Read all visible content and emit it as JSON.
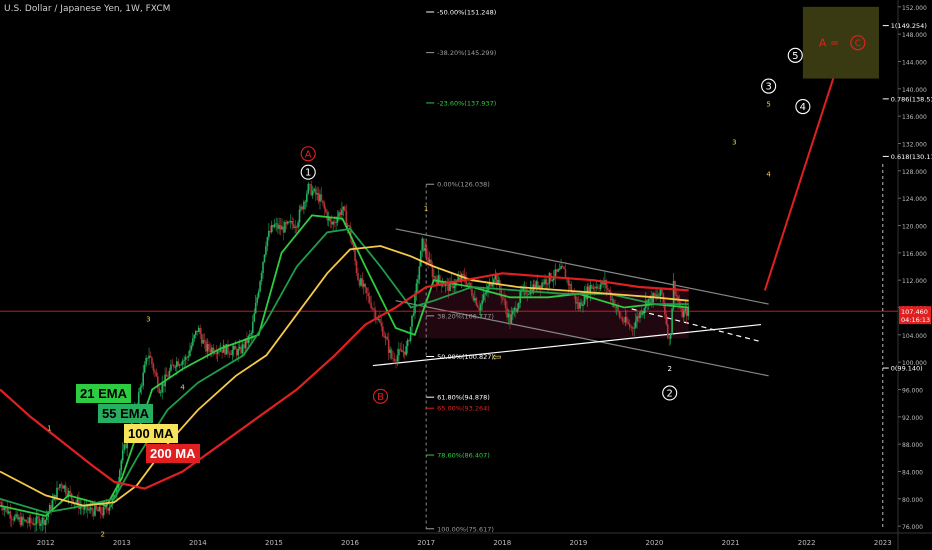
{
  "header": {
    "symbol_title": "U.S. Dollar / Japanese Yen, 1W, FXCM"
  },
  "ma_labels": [
    {
      "text": "21 EMA",
      "bg": "#2ecc40",
      "fg": "#000000"
    },
    {
      "text": "55 EMA",
      "bg": "#27ae60",
      "fg": "#000000"
    },
    {
      "text": "100 MA",
      "bg": "#f7e35c",
      "fg": "#000000"
    },
    {
      "text": "200 MA",
      "bg": "#e02020",
      "fg": "#ffffff"
    }
  ],
  "chart_data": {
    "type": "candlestick",
    "title": "U.S. Dollar / Japanese Yen, 1W, FXCM",
    "ylim": [
      75,
      153
    ],
    "y_ticks": [
      76.0,
      80.0,
      84.0,
      88.0,
      92.0,
      96.0,
      100.0,
      104.0,
      108.0,
      112.0,
      116.0,
      120.0,
      124.0,
      128.0,
      132.0,
      136.0,
      140.0,
      144.0,
      148.0,
      152.0
    ],
    "x_ticks": [
      "2012",
      "2013",
      "2014",
      "2015",
      "2016",
      "2017",
      "2018",
      "2019",
      "2020",
      "2021",
      "2022",
      "2023"
    ],
    "xlim": [
      2011.4,
      2023.2
    ],
    "price_path": [
      [
        2011.4,
        79.5
      ],
      [
        2011.6,
        77.0
      ],
      [
        2011.8,
        76.5
      ],
      [
        2012.0,
        77.0
      ],
      [
        2012.2,
        82.5
      ],
      [
        2012.35,
        80.0
      ],
      [
        2012.5,
        78.5
      ],
      [
        2012.75,
        78.0
      ],
      [
        2012.9,
        80.0
      ],
      [
        2013.0,
        86.0
      ],
      [
        2013.2,
        94.0
      ],
      [
        2013.35,
        101.5
      ],
      [
        2013.5,
        96.0
      ],
      [
        2013.7,
        100.0
      ],
      [
        2013.85,
        100.5
      ],
      [
        2014.0,
        105.0
      ],
      [
        2014.1,
        102.0
      ],
      [
        2014.3,
        102.0
      ],
      [
        2014.55,
        101.5
      ],
      [
        2014.7,
        104.0
      ],
      [
        2014.9,
        118.0
      ],
      [
        2015.0,
        120.0
      ],
      [
        2015.1,
        119.5
      ],
      [
        2015.3,
        120.5
      ],
      [
        2015.45,
        125.5
      ],
      [
        2015.6,
        124.0
      ],
      [
        2015.75,
        120.0
      ],
      [
        2015.9,
        122.5
      ],
      [
        2016.0,
        119.0
      ],
      [
        2016.1,
        112.5
      ],
      [
        2016.3,
        108.0
      ],
      [
        2016.45,
        104.0
      ],
      [
        2016.55,
        100.5
      ],
      [
        2016.75,
        102.0
      ],
      [
        2016.85,
        109.0
      ],
      [
        2016.95,
        117.5
      ],
      [
        2017.1,
        112.5
      ],
      [
        2017.3,
        111.0
      ],
      [
        2017.5,
        112.5
      ],
      [
        2017.7,
        108.0
      ],
      [
        2017.9,
        113.0
      ],
      [
        2018.1,
        106.0
      ],
      [
        2018.25,
        110.0
      ],
      [
        2018.5,
        111.5
      ],
      [
        2018.8,
        113.5
      ],
      [
        2019.0,
        108.0
      ],
      [
        2019.15,
        111.0
      ],
      [
        2019.35,
        111.5
      ],
      [
        2019.55,
        106.5
      ],
      [
        2019.7,
        105.0
      ],
      [
        2019.9,
        109.0
      ],
      [
        2020.1,
        110.0
      ],
      [
        2020.2,
        102.5
      ],
      [
        2020.25,
        111.5
      ],
      [
        2020.35,
        107.0
      ],
      [
        2020.45,
        107.5
      ]
    ],
    "moving_averages": [
      {
        "name": "21 EMA",
        "color": "#2ecc40",
        "points": [
          [
            2011.4,
            79.0
          ],
          [
            2012.0,
            77.5
          ],
          [
            2012.3,
            80.5
          ],
          [
            2012.8,
            79.0
          ],
          [
            2013.0,
            83.0
          ],
          [
            2013.4,
            96.0
          ],
          [
            2013.8,
            99.0
          ],
          [
            2014.3,
            102.0
          ],
          [
            2014.8,
            104.0
          ],
          [
            2015.1,
            116.0
          ],
          [
            2015.5,
            121.5
          ],
          [
            2015.9,
            121.0
          ],
          [
            2016.2,
            114.0
          ],
          [
            2016.6,
            105.0
          ],
          [
            2016.85,
            104.0
          ],
          [
            2017.1,
            112.0
          ],
          [
            2017.6,
            111.0
          ],
          [
            2018.1,
            109.5
          ],
          [
            2018.6,
            109.5
          ],
          [
            2019.0,
            110.0
          ],
          [
            2019.6,
            108.0
          ],
          [
            2020.0,
            108.5
          ],
          [
            2020.45,
            108.0
          ]
        ]
      },
      {
        "name": "55 EMA",
        "color": "#1f9e4a",
        "points": [
          [
            2011.4,
            80.0
          ],
          [
            2012.0,
            78.0
          ],
          [
            2012.5,
            79.0
          ],
          [
            2012.9,
            80.0
          ],
          [
            2013.2,
            86.0
          ],
          [
            2013.6,
            93.0
          ],
          [
            2014.0,
            97.0
          ],
          [
            2014.6,
            101.0
          ],
          [
            2014.9,
            106.0
          ],
          [
            2015.3,
            114.0
          ],
          [
            2015.7,
            119.0
          ],
          [
            2016.0,
            119.5
          ],
          [
            2016.4,
            114.0
          ],
          [
            2016.8,
            108.0
          ],
          [
            2017.1,
            109.0
          ],
          [
            2017.6,
            111.0
          ],
          [
            2018.2,
            110.5
          ],
          [
            2018.8,
            110.0
          ],
          [
            2019.4,
            110.0
          ],
          [
            2020.0,
            108.5
          ],
          [
            2020.45,
            108.5
          ]
        ]
      },
      {
        "name": "100 MA",
        "color": "#f7c948",
        "points": [
          [
            2011.4,
            84.0
          ],
          [
            2012.0,
            80.5
          ],
          [
            2012.5,
            79.0
          ],
          [
            2012.9,
            79.5
          ],
          [
            2013.2,
            82.0
          ],
          [
            2013.6,
            88.0
          ],
          [
            2014.0,
            93.0
          ],
          [
            2014.5,
            98.0
          ],
          [
            2014.9,
            101.0
          ],
          [
            2015.3,
            107.0
          ],
          [
            2015.7,
            113.0
          ],
          [
            2016.0,
            116.5
          ],
          [
            2016.4,
            117.0
          ],
          [
            2016.8,
            115.5
          ],
          [
            2017.1,
            114.0
          ],
          [
            2017.6,
            112.0
          ],
          [
            2018.2,
            111.0
          ],
          [
            2018.8,
            110.5
          ],
          [
            2019.4,
            110.0
          ],
          [
            2020.0,
            109.5
          ],
          [
            2020.45,
            109.0
          ]
        ]
      },
      {
        "name": "200 MA",
        "color": "#e02020",
        "points": [
          [
            2011.4,
            96.0
          ],
          [
            2011.8,
            92.0
          ],
          [
            2012.2,
            88.5
          ],
          [
            2012.6,
            85.0
          ],
          [
            2012.9,
            82.5
          ],
          [
            2013.3,
            81.5
          ],
          [
            2013.8,
            84.0
          ],
          [
            2014.3,
            88.0
          ],
          [
            2014.8,
            92.0
          ],
          [
            2015.3,
            96.0
          ],
          [
            2015.8,
            101.0
          ],
          [
            2016.2,
            105.5
          ],
          [
            2016.6,
            108.0
          ],
          [
            2017.0,
            111.0
          ],
          [
            2017.5,
            112.0
          ],
          [
            2018.0,
            113.0
          ],
          [
            2018.6,
            112.5
          ],
          [
            2019.2,
            112.0
          ],
          [
            2019.8,
            111.0
          ],
          [
            2020.45,
            110.5
          ]
        ]
      }
    ],
    "price_labels": [
      {
        "text": "107.460",
        "value": 107.46,
        "bg": "#e02020"
      },
      {
        "text": "04:16:13",
        "value": 106.3,
        "bg": "#e02020"
      }
    ],
    "fib_retracement": {
      "x_start": 2017.0,
      "levels": [
        {
          "text": "-50.00%(151.248)",
          "value": 151.248,
          "color": "#ffffff"
        },
        {
          "text": "-38.20%(145.299)",
          "value": 145.299,
          "color": "#9e9e9e"
        },
        {
          "text": "-23.60%(137.937)",
          "value": 137.937,
          "color": "#2ecc40"
        },
        {
          "text": "0.00%(126.038)",
          "value": 126.038,
          "color": "#9e9e9e"
        },
        {
          "text": "38.20%(106.777)",
          "value": 106.777,
          "color": "#9e9e9e"
        },
        {
          "text": "50.00%(100.827)",
          "value": 100.827,
          "color": "#ffffff"
        },
        {
          "text": "61.80%(94.878)",
          "value": 94.878,
          "color": "#ffffff"
        },
        {
          "text": "65.00%(93.264)",
          "value": 93.264,
          "color": "#e02020"
        },
        {
          "text": "78.60%(86.407)",
          "value": 86.407,
          "color": "#2ecc40"
        },
        {
          "text": "100.00%(75.617)",
          "value": 75.617,
          "color": "#9e9e9e"
        }
      ]
    },
    "fib_extension": {
      "x_start": 2023.0,
      "levels": [
        {
          "text": "1(149.254)",
          "value": 149.254,
          "color": "#ffffff"
        },
        {
          "text": "0.786(138.530)",
          "value": 138.53,
          "color": "#ffffff"
        },
        {
          "text": "0.618(130.110)",
          "value": 130.11,
          "color": "#ffffff"
        },
        {
          "text": "0(99.140)",
          "value": 99.14,
          "color": "#ffffff"
        }
      ]
    },
    "wave_labels": [
      {
        "text": "A",
        "x": 2015.45,
        "y": 130.5,
        "color": "#e02020",
        "circled": true
      },
      {
        "text": "1",
        "x": 2015.45,
        "y": 127.8,
        "color": "#ffffff",
        "circled": true
      },
      {
        "text": "B",
        "x": 2016.4,
        "y": 95.0,
        "color": "#e02020",
        "circled": true
      },
      {
        "text": "2",
        "x": 2020.2,
        "y": 95.5,
        "color": "#ffffff",
        "circled": true
      },
      {
        "text": "2",
        "x": 2020.2,
        "y": 99.2,
        "color": "#ffffff",
        "circled": false
      },
      {
        "text": "3",
        "x": 2021.5,
        "y": 140.4,
        "color": "#ffffff",
        "circled": true
      },
      {
        "text": "4",
        "x": 2021.95,
        "y": 137.4,
        "color": "#ffffff",
        "circled": true
      },
      {
        "text": "5",
        "x": 2021.85,
        "y": 144.9,
        "color": "#ffffff",
        "circled": true
      },
      {
        "text": "5",
        "x": 2021.5,
        "y": 137.9,
        "color": "#f7c948",
        "circled": false
      },
      {
        "text": "3",
        "x": 2021.05,
        "y": 132.4,
        "color": "#f7c948",
        "circled": false
      },
      {
        "text": "4",
        "x": 2021.5,
        "y": 127.7,
        "color": "#f7c948",
        "circled": false
      },
      {
        "text": "1",
        "x": 2017.0,
        "y": 122.6,
        "color": "#f7c948",
        "circled": false
      },
      {
        "text": "1",
        "x": 2012.05,
        "y": 90.5,
        "color": "#f7c948",
        "circled": false
      },
      {
        "text": "2",
        "x": 2012.75,
        "y": 75.0,
        "color": "#f7c948",
        "circled": false
      },
      {
        "text": "3",
        "x": 2013.35,
        "y": 106.5,
        "color": "#f7c948",
        "circled": false
      },
      {
        "text": "4",
        "x": 2013.8,
        "y": 96.5,
        "color": "#f7c948",
        "circled": false
      }
    ],
    "target_box": {
      "text": "A =",
      "circled_letter": "C",
      "x0": 2021.95,
      "x1": 2022.95,
      "y0": 141.5,
      "y1": 152.0,
      "fill": "#3a3a12",
      "text_color": "#e02020"
    },
    "channel_lines": [
      {
        "from": [
          2016.6,
          119.5
        ],
        "to": [
          2021.5,
          108.5
        ],
        "color": "#888888",
        "dash": false
      },
      {
        "from": [
          2016.6,
          109.0
        ],
        "to": [
          2021.5,
          98.0
        ],
        "color": "#888888",
        "dash": false
      },
      {
        "from": [
          2016.3,
          99.5
        ],
        "to": [
          2021.4,
          105.5
        ],
        "color": "#ffffff",
        "dash": false
      },
      {
        "from": [
          2019.7,
          107.8
        ],
        "to": [
          2021.4,
          103.0
        ],
        "color": "#ffffff",
        "dash": true
      }
    ],
    "arrow": {
      "from": [
        2021.45,
        110.5
      ],
      "to": [
        2022.45,
        145.0
      ],
      "color": "#e02020"
    },
    "horizontal_price_line": 107.46
  }
}
